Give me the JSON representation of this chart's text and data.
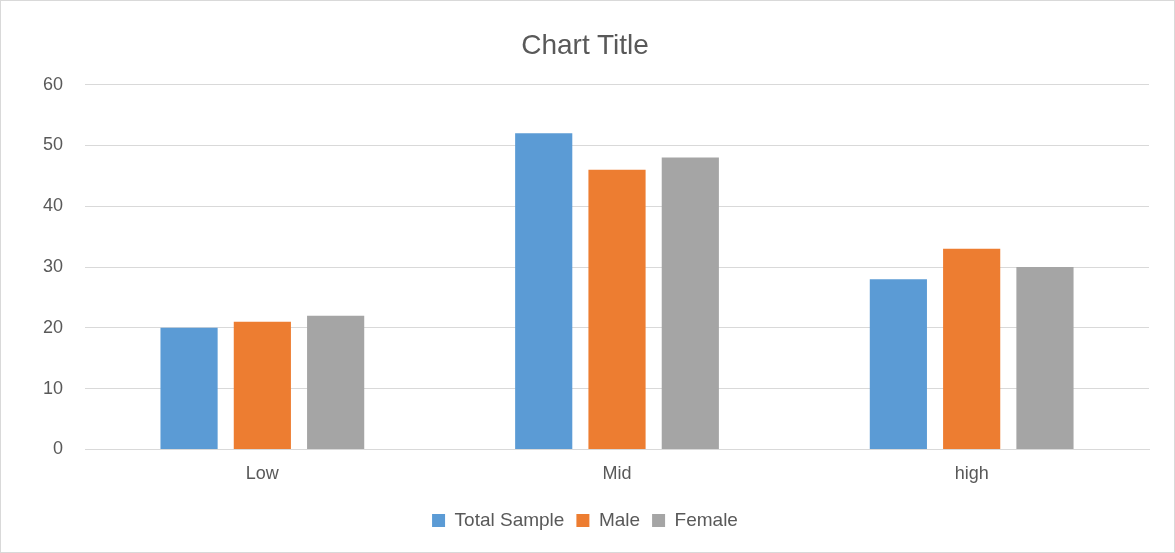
{
  "chart_data": {
    "type": "bar",
    "title": "Chart Title",
    "categories": [
      "Low",
      "Mid",
      "high"
    ],
    "series": [
      {
        "name": "Total Sample",
        "color": "#5b9bd5",
        "values": [
          20,
          52,
          28
        ]
      },
      {
        "name": "Male",
        "color": "#ed7d31",
        "values": [
          21,
          46,
          33
        ]
      },
      {
        "name": "Female",
        "color": "#a5a5a5",
        "values": [
          22,
          48,
          30
        ]
      }
    ],
    "ylim": [
      0,
      60
    ],
    "yticks": [
      0,
      10,
      20,
      30,
      40,
      50,
      60
    ],
    "grid": "y",
    "legend": "bottom"
  }
}
